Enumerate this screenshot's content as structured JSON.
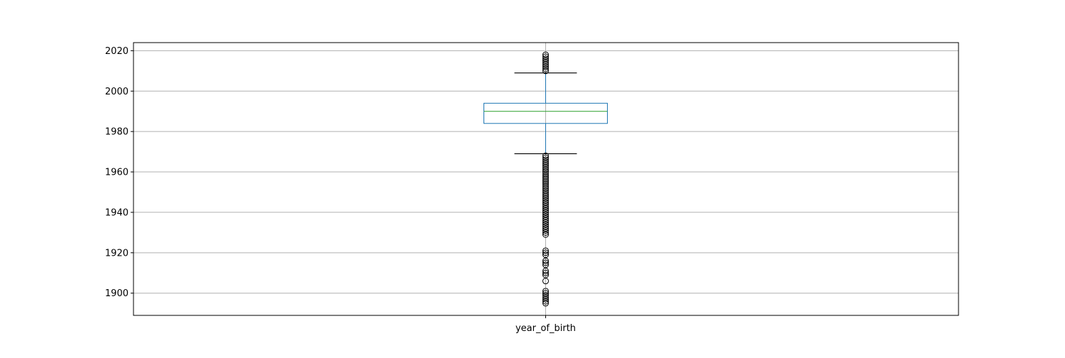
{
  "chart_data": {
    "type": "box",
    "title": "",
    "xlabel": "",
    "ylabel": "",
    "categories": [
      "year_of_birth"
    ],
    "ylim": [
      1889,
      2024
    ],
    "yticks": [
      1900,
      1920,
      1940,
      1960,
      1980,
      2000,
      2020
    ],
    "grid": true,
    "box": {
      "q1": 1984,
      "median": 1990,
      "q3": 1994,
      "whisker_low": 1969,
      "whisker_high": 2009
    },
    "outliers_high": [
      2010,
      2011,
      2012,
      2013,
      2014,
      2015,
      2016,
      2017,
      2018
    ],
    "outliers_low": [
      1968,
      1967,
      1966,
      1965,
      1964,
      1963,
      1962,
      1961,
      1960,
      1959,
      1958,
      1957,
      1956,
      1955,
      1954,
      1953,
      1952,
      1951,
      1950,
      1949,
      1948,
      1947,
      1946,
      1945,
      1944,
      1943,
      1942,
      1941,
      1940,
      1939,
      1938,
      1937,
      1936,
      1935,
      1934,
      1933,
      1932,
      1931,
      1930,
      1929,
      1921,
      1920,
      1919,
      1916,
      1915,
      1914,
      1911,
      1910,
      1909,
      1906,
      1901,
      1900,
      1899,
      1898,
      1897,
      1896,
      1895
    ],
    "colors": {
      "box": "#1f77b4",
      "median": "#2ca02c",
      "whisker_cap": "#000000",
      "outlier": "#000000",
      "grid": "#b0b0b0"
    }
  }
}
